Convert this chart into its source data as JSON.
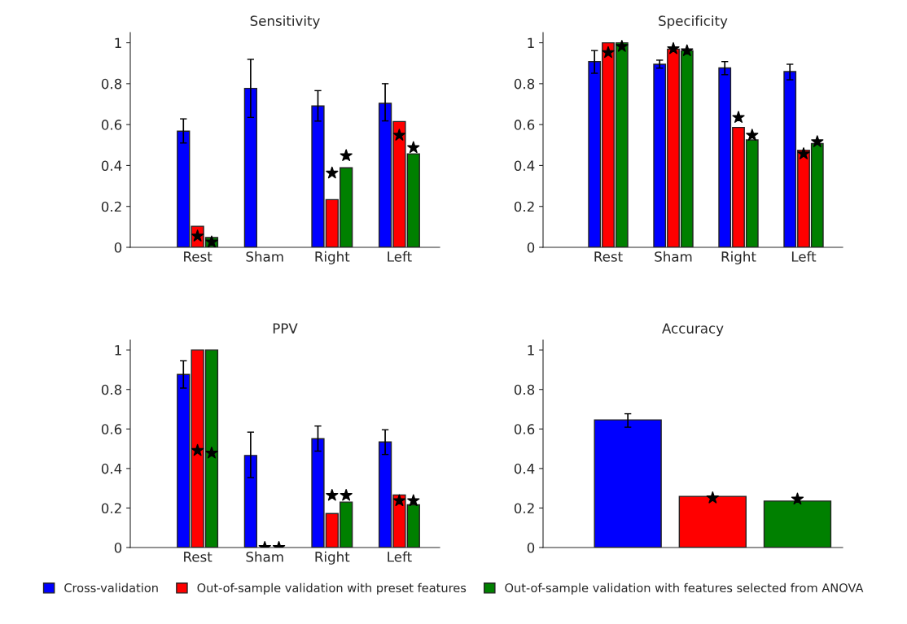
{
  "chart_data": [
    {
      "type": "bar",
      "title": "Sensitivity",
      "categories": [
        "Rest",
        "Sham",
        "Right",
        "Left"
      ],
      "ylim": [
        0,
        1.05
      ],
      "yticks": [
        0,
        0.2,
        0.4,
        0.6,
        0.8,
        1
      ],
      "grid": false,
      "series": [
        {
          "color": "#0000ff",
          "values": [
            0.568,
            0.777,
            0.691,
            0.704
          ],
          "errors": [
            [
              0.51,
              0.628
            ],
            [
              0.635,
              0.919
            ],
            [
              0.617,
              0.766
            ],
            [
              0.618,
              0.8
            ]
          ]
        },
        {
          "color": "#ff0000",
          "values": [
            0.103,
            0,
            0.233,
            0.615
          ]
        },
        {
          "color": "#008000",
          "values": [
            0.048,
            0,
            0.389,
            0.457
          ]
        },
        {
          "type": "scatter",
          "marker": "star",
          "color": "#000000",
          "values": [
            0.055,
            null,
            0.363,
            0.548
          ]
        },
        {
          "type": "scatter",
          "marker": "star",
          "color": "#000000",
          "values": [
            0.026,
            null,
            0.448,
            0.487
          ]
        }
      ]
    },
    {
      "type": "bar",
      "title": "Specificity",
      "categories": [
        "Rest",
        "Sham",
        "Right",
        "Left"
      ],
      "ylim": [
        0,
        1.05
      ],
      "yticks": [
        0,
        0.2,
        0.4,
        0.6,
        0.8,
        1
      ],
      "grid": false,
      "series": [
        {
          "color": "#0000ff",
          "values": [
            0.908,
            0.895,
            0.877,
            0.859
          ],
          "errors": [
            [
              0.851,
              0.962
            ],
            [
              0.876,
              0.915
            ],
            [
              0.844,
              0.908
            ],
            [
              0.819,
              0.895
            ]
          ]
        },
        {
          "color": "#ff0000",
          "values": [
            1.0,
            0.969,
            0.586,
            0.475
          ]
        },
        {
          "color": "#008000",
          "values": [
            1.0,
            0.961,
            0.525,
            0.507
          ]
        },
        {
          "type": "scatter",
          "marker": "star",
          "color": "#000000",
          "values": [
            0.952,
            0.971,
            0.635,
            0.457
          ]
        },
        {
          "type": "scatter",
          "marker": "star",
          "color": "#000000",
          "values": [
            0.982,
            0.961,
            0.548,
            0.516
          ]
        }
      ]
    },
    {
      "type": "bar",
      "title": "PPV",
      "categories": [
        "Rest",
        "Sham",
        "Right",
        "Left"
      ],
      "ylim": [
        0,
        1.05
      ],
      "yticks": [
        0,
        0.2,
        0.4,
        0.6,
        0.8,
        1
      ],
      "grid": false,
      "series": [
        {
          "color": "#0000ff",
          "values": [
            0.876,
            0.466,
            0.551,
            0.534
          ],
          "errors": [
            [
              0.807,
              0.945
            ],
            [
              0.354,
              0.584
            ],
            [
              0.488,
              0.615
            ],
            [
              0.471,
              0.596
            ]
          ]
        },
        {
          "color": "#ff0000",
          "values": [
            1.0,
            0,
            0.172,
            0.266
          ]
        },
        {
          "color": "#008000",
          "values": [
            1.0,
            0,
            0.23,
            0.216
          ]
        },
        {
          "type": "scatter",
          "marker": "star",
          "color": "#000000",
          "values": [
            0.491,
            0,
            0.264,
            0.237
          ]
        },
        {
          "type": "scatter",
          "marker": "star",
          "color": "#000000",
          "values": [
            0.478,
            0,
            0.264,
            0.237
          ]
        }
      ]
    },
    {
      "type": "bar",
      "title": "Accuracy",
      "categories": [
        null
      ],
      "ylim": [
        0,
        1.05
      ],
      "yticks": [
        0,
        0.2,
        0.4,
        0.6,
        0.8,
        1
      ],
      "grid": false,
      "legend": "bottom",
      "series": [
        {
          "name": "Cross-validation",
          "color": "#0000ff",
          "values": [
            0.646
          ],
          "errors": [
            [
              0.609,
              0.677
            ]
          ]
        },
        {
          "name": "Out-of-sample validation with preset features",
          "color": "#ff0000",
          "values": [
            0.259
          ]
        },
        {
          "name": "Out-of-sample validation with features selected from ANOVA",
          "color": "#008000",
          "values": [
            0.235
          ]
        },
        {
          "type": "scatter",
          "marker": "star",
          "color": "#000000",
          "values": [
            0.251
          ]
        },
        {
          "type": "scatter",
          "marker": "star",
          "color": "#000000",
          "values": [
            0.245
          ]
        }
      ]
    }
  ]
}
